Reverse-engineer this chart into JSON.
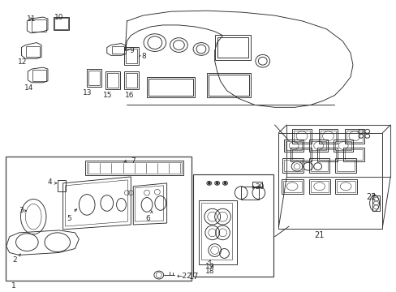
{
  "bg_color": "#ffffff",
  "lc": "#2a2a2a",
  "lw": 0.65,
  "figsize": [
    4.89,
    3.6
  ],
  "dpi": 100
}
